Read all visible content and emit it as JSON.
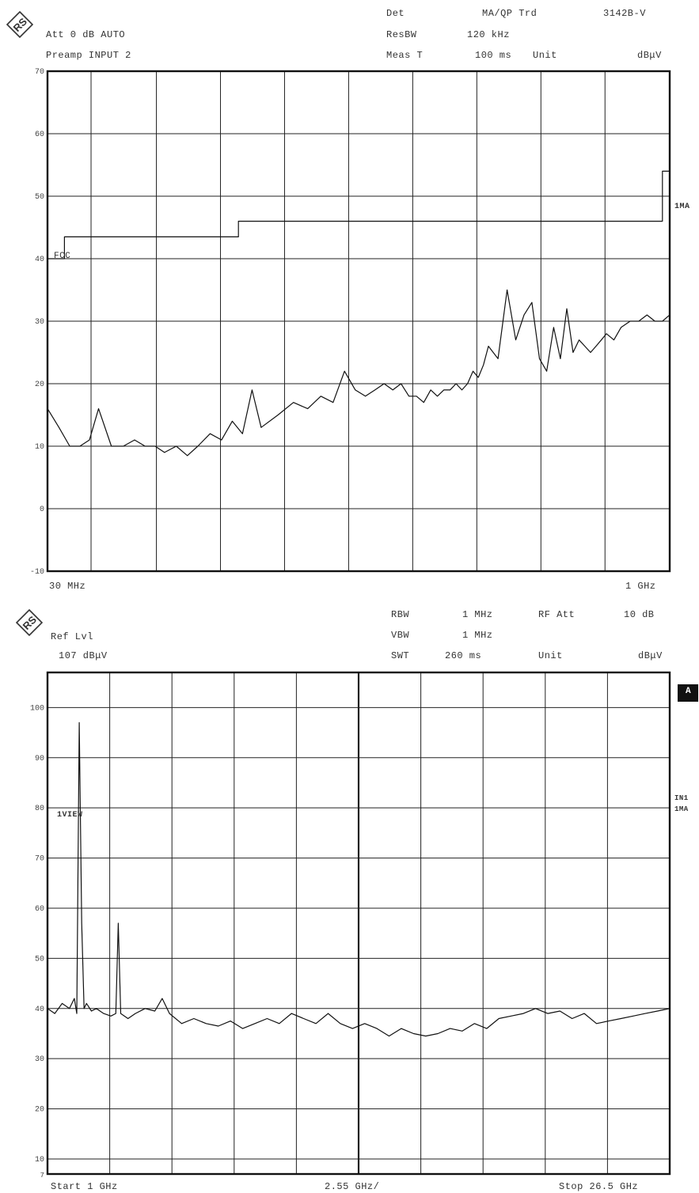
{
  "top": {
    "header": {
      "att": "Att 0 dB AUTO",
      "preamp": "Preamp INPUT 2",
      "det_label": "Det",
      "det_value": "MA/QP Trd",
      "trace_id": "3142B-V",
      "resbw_label": "ResBW",
      "resbw_value": "120 kHz",
      "meast_label": "Meas T",
      "meast_value": "100 ms",
      "unit_label": "Unit",
      "unit_value": "dBμV"
    },
    "limit_label": "FCC",
    "trace_label": "1MA",
    "x_start_label": "30 MHz",
    "x_stop_label": "1 GHz"
  },
  "bottom": {
    "header": {
      "ref_label": "Ref Lvl",
      "ref_value": "107 dBμV",
      "rbw_label": "RBW",
      "rbw_value": "1 MHz",
      "rfatt_label": "RF Att",
      "rfatt_value": "10 dB",
      "vbw_label": "VBW",
      "vbw_value": "1 MHz",
      "swt_label": "SWT",
      "swt_value": "260 ms",
      "unit_label": "Unit",
      "unit_value": "dBμV"
    },
    "trace_label": "1VIEW",
    "side_marker": "A",
    "side_label_1": "IN1",
    "side_label_2": "1MA",
    "x_start_label": "Start 1 GHz",
    "x_div_label": "2.55 GHz/",
    "x_stop_label": "Stop 26.5 GHz"
  },
  "chart_data": [
    {
      "type": "line",
      "x_scale": "log",
      "xlim": [
        30,
        1000
      ],
      "ylim": [
        -10,
        70
      ],
      "yticks": [
        -10,
        0,
        10,
        20,
        30,
        40,
        50,
        60,
        70
      ],
      "xlabel": "",
      "ylabel": "",
      "grid": true,
      "series": [
        {
          "name": "FCC",
          "x": [
            30,
            30,
            33,
            33,
            88,
            88,
            216,
            216,
            960,
            960,
            1000
          ],
          "y": [
            40,
            40,
            40,
            43.5,
            43.5,
            46,
            46,
            46,
            46,
            54,
            54
          ]
        },
        {
          "name": "1MA",
          "x": [
            30,
            32,
            34,
            36,
            38,
            40,
            43,
            46,
            49,
            52,
            55,
            58,
            62,
            66,
            70,
            75,
            80,
            85,
            90,
            95,
            100,
            110,
            120,
            130,
            140,
            150,
            160,
            170,
            180,
            190,
            200,
            210,
            220,
            230,
            240,
            250,
            260,
            270,
            280,
            290,
            300,
            310,
            320,
            330,
            340,
            350,
            360,
            380,
            400,
            420,
            440,
            460,
            480,
            500,
            520,
            540,
            560,
            580,
            600,
            620,
            640,
            660,
            680,
            700,
            730,
            760,
            800,
            840,
            880,
            920,
            960,
            1000
          ],
          "y": [
            16,
            13,
            10,
            10,
            11,
            16,
            10,
            10,
            11,
            10,
            10,
            9,
            10,
            8.5,
            10,
            12,
            11,
            14,
            12,
            19,
            13,
            15,
            17,
            16,
            18,
            17,
            22,
            19,
            18,
            19,
            20,
            19,
            20,
            18,
            18,
            17,
            19,
            18,
            19,
            19,
            20,
            19,
            20,
            22,
            21,
            23,
            26,
            24,
            35,
            27,
            31,
            33,
            24,
            22,
            29,
            24,
            32,
            25,
            27,
            26,
            25,
            26,
            27,
            28,
            27,
            29,
            30,
            30,
            31,
            30,
            30,
            31
          ]
        }
      ]
    },
    {
      "type": "line",
      "xlim": [
        1,
        26.5
      ],
      "ylim": [
        7,
        107
      ],
      "yticks": [
        10,
        20,
        30,
        40,
        50,
        60,
        70,
        80,
        90,
        100
      ],
      "xlabel": "",
      "ylabel": "",
      "grid": true,
      "series": [
        {
          "name": "1VIEW",
          "x": [
            1.0,
            1.3,
            1.6,
            1.9,
            2.1,
            2.2,
            2.3,
            2.4,
            2.5,
            2.6,
            2.8,
            3.0,
            3.3,
            3.6,
            3.8,
            3.9,
            4.0,
            4.3,
            4.6,
            5.0,
            5.4,
            5.7,
            6.0,
            6.5,
            7.0,
            7.5,
            8.0,
            8.5,
            9.0,
            9.5,
            10.0,
            10.5,
            11.0,
            11.5,
            12.0,
            12.5,
            13.0,
            13.5,
            14.0,
            14.5,
            15.0,
            15.5,
            16.0,
            16.5,
            17.0,
            17.5,
            18.0,
            18.5,
            19.0,
            19.5,
            20.0,
            20.5,
            21.0,
            21.5,
            22.0,
            22.5,
            23.0,
            23.5,
            24.0,
            24.5,
            25.0,
            25.5,
            26.0,
            26.5
          ],
          "y": [
            40,
            39,
            41,
            40,
            42,
            39,
            97,
            57,
            40,
            41,
            39.5,
            40,
            39,
            38.5,
            39,
            57,
            39,
            38,
            39,
            40,
            39.5,
            42,
            39,
            37,
            38,
            37,
            36.5,
            37.5,
            36,
            37,
            38,
            37,
            39,
            38,
            37,
            39,
            37,
            36,
            37,
            36,
            34.5,
            36,
            35,
            34.5,
            35,
            36,
            35.5,
            37,
            36,
            38,
            38.5,
            39,
            40,
            39,
            39.5,
            38,
            39,
            37,
            37.5,
            38,
            38.5,
            39,
            39.5,
            40
          ]
        }
      ]
    }
  ]
}
